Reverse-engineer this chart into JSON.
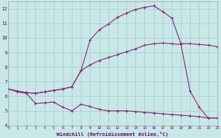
{
  "bg_color": "#c8e8e8",
  "grid_color": "#a0c8c8",
  "line_color": "#882277",
  "xlabel": "Windchill (Refroidissement éolien,°C)",
  "xlim": [
    0,
    23
  ],
  "ylim": [
    4,
    12.5
  ],
  "x_ticks": [
    0,
    1,
    2,
    3,
    4,
    5,
    6,
    7,
    8,
    9,
    10,
    11,
    12,
    13,
    14,
    15,
    16,
    17,
    18,
    19,
    20,
    21,
    22,
    23
  ],
  "y_ticks": [
    4,
    5,
    6,
    7,
    8,
    9,
    10,
    11,
    12
  ],
  "series1_x": [
    0,
    1,
    2,
    3,
    4,
    5,
    6,
    7,
    8,
    9,
    10,
    11,
    12,
    13,
    14,
    15,
    16,
    17,
    18,
    19,
    20,
    21,
    22,
    23
  ],
  "series1_y": [
    6.5,
    6.3,
    6.2,
    5.5,
    5.55,
    5.6,
    5.25,
    5.0,
    5.45,
    5.3,
    5.1,
    5.0,
    5.0,
    5.0,
    4.95,
    4.9,
    4.85,
    4.8,
    4.75,
    4.7,
    4.65,
    4.6,
    4.5,
    4.5
  ],
  "series2_x": [
    0,
    1,
    2,
    3,
    4,
    5,
    6,
    7,
    8,
    9,
    10,
    11,
    12,
    13,
    14,
    15,
    16,
    17,
    18,
    19,
    20,
    21,
    22,
    23
  ],
  "series2_y": [
    6.5,
    6.35,
    6.25,
    6.2,
    6.3,
    6.4,
    6.5,
    6.65,
    7.75,
    8.15,
    8.45,
    8.65,
    8.85,
    9.05,
    9.25,
    9.5,
    9.6,
    9.65,
    9.6,
    9.55,
    6.35,
    5.25,
    4.5,
    4.5
  ],
  "series3_x": [
    0,
    1,
    2,
    3,
    4,
    5,
    6,
    7,
    8,
    9,
    10,
    11,
    12,
    13,
    14,
    15,
    16,
    17,
    18,
    19,
    20,
    21,
    22,
    23
  ],
  "series3_y": [
    6.5,
    6.35,
    6.25,
    6.2,
    6.3,
    6.4,
    6.5,
    6.65,
    7.75,
    9.85,
    10.55,
    10.95,
    11.4,
    11.7,
    11.95,
    12.1,
    12.2,
    11.8,
    11.35,
    9.6,
    9.6,
    9.55,
    9.5,
    9.4
  ]
}
